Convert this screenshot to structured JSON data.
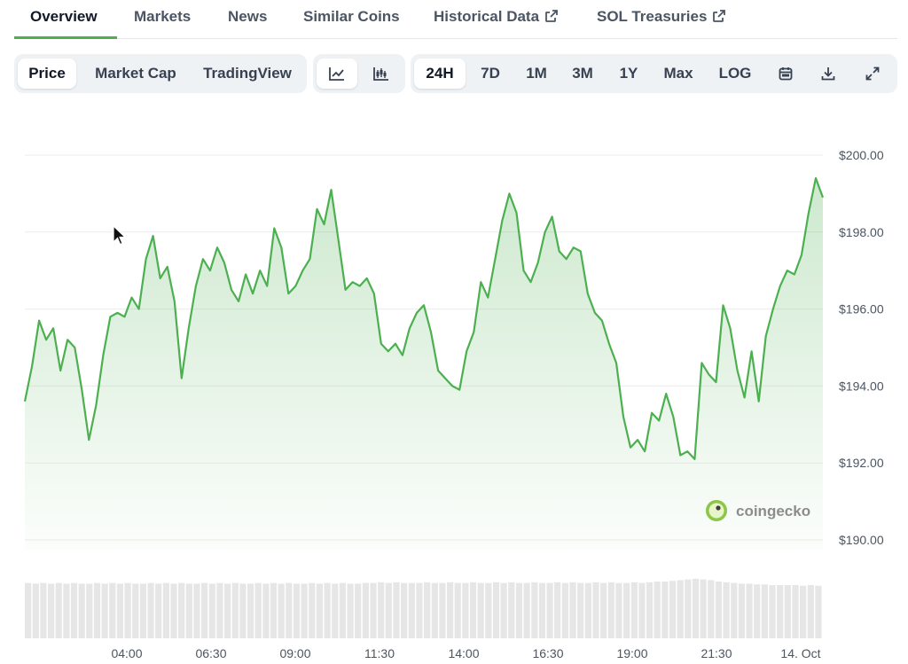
{
  "tabs": [
    {
      "label": "Overview"
    },
    {
      "label": "Markets"
    },
    {
      "label": "News"
    },
    {
      "label": "Similar Coins"
    },
    {
      "label": "Historical Data"
    },
    {
      "label": "SOL Treasuries"
    }
  ],
  "toolbar": {
    "type_tabs": [
      {
        "label": "Price"
      },
      {
        "label": "Market Cap"
      },
      {
        "label": "TradingView"
      }
    ],
    "chart_style": [
      {
        "icon": "line-chart-icon"
      },
      {
        "icon": "candlestick-icon"
      }
    ],
    "ranges": [
      {
        "label": "24H"
      },
      {
        "label": "7D"
      },
      {
        "label": "1M"
      },
      {
        "label": "3M"
      },
      {
        "label": "1Y"
      },
      {
        "label": "Max"
      },
      {
        "label": "LOG"
      }
    ],
    "actions": [
      {
        "icon": "calendar-icon"
      },
      {
        "icon": "download-icon"
      },
      {
        "icon": "expand-icon"
      }
    ]
  },
  "colors": {
    "line": "#4caf50",
    "area_top": "#cfeccf",
    "tab_accent": "#4caf50",
    "volume": "#e6e6e6"
  },
  "watermark": {
    "text": "coingecko"
  },
  "chart_data": {
    "type": "line",
    "y_ticks": [
      "$200.00",
      "$198.00",
      "$196.00",
      "$194.00",
      "$192.00",
      "$190.00"
    ],
    "ylim": [
      190,
      200
    ],
    "x_ticks": [
      "04:00",
      "06:30",
      "09:00",
      "11:30",
      "14:00",
      "16:30",
      "19:00",
      "21:30",
      "14. Oct"
    ],
    "grid": true,
    "legend": "none",
    "series": [
      {
        "values": [
          193.6,
          194.5,
          195.7,
          195.2,
          195.5,
          194.4,
          195.2,
          195.0,
          193.9,
          192.6,
          193.5,
          194.8,
          195.8,
          195.9,
          195.8,
          196.3,
          196.0,
          197.3,
          197.9,
          196.8,
          197.1,
          196.2,
          194.2,
          195.5,
          196.6,
          197.3,
          197.0,
          197.6,
          197.2,
          196.5,
          196.2,
          196.9,
          196.4,
          197.0,
          196.6,
          198.1,
          197.6,
          196.4,
          196.6,
          197.0,
          197.3,
          198.6,
          198.2,
          199.1,
          197.8,
          196.5,
          196.7,
          196.6,
          196.8,
          196.4,
          195.1,
          194.9,
          195.1,
          194.8,
          195.5,
          195.9,
          196.1,
          195.4,
          194.4,
          194.2,
          194.0,
          193.9,
          194.9,
          195.4,
          196.7,
          196.3,
          197.3,
          198.3,
          199.0,
          198.5,
          197.0,
          196.7,
          197.2,
          198.0,
          198.4,
          197.5,
          197.3,
          197.6,
          197.5,
          196.4,
          195.9,
          195.7,
          195.1,
          194.6,
          193.2,
          192.4,
          192.6,
          192.3,
          193.3,
          193.1,
          193.8,
          193.2,
          192.2,
          192.3,
          192.1,
          194.6,
          194.3,
          194.1,
          196.1,
          195.5,
          194.4,
          193.7,
          194.9,
          193.6,
          195.3,
          196.0,
          196.6,
          197.0,
          196.9,
          197.4,
          198.5,
          199.4,
          198.9
        ]
      }
    ],
    "volume": [
      0.78,
      0.77,
      0.78,
      0.77,
      0.78,
      0.77,
      0.78,
      0.77,
      0.77,
      0.78,
      0.77,
      0.78,
      0.77,
      0.78,
      0.77,
      0.77,
      0.78,
      0.77,
      0.78,
      0.77,
      0.78,
      0.77,
      0.77,
      0.78,
      0.77,
      0.78,
      0.77,
      0.78,
      0.77,
      0.77,
      0.78,
      0.77,
      0.78,
      0.77,
      0.78,
      0.77,
      0.77,
      0.78,
      0.77,
      0.78,
      0.77,
      0.78,
      0.77,
      0.77,
      0.78,
      0.78,
      0.79,
      0.78,
      0.79,
      0.78,
      0.78,
      0.78,
      0.79,
      0.78,
      0.78,
      0.79,
      0.78,
      0.78,
      0.79,
      0.78,
      0.78,
      0.79,
      0.78,
      0.79,
      0.78,
      0.78,
      0.79,
      0.78,
      0.78,
      0.79,
      0.78,
      0.79,
      0.78,
      0.78,
      0.79,
      0.78,
      0.79,
      0.78,
      0.78,
      0.79,
      0.78,
      0.79,
      0.8,
      0.8,
      0.81,
      0.82,
      0.83,
      0.84,
      0.83,
      0.82,
      0.8,
      0.79,
      0.78,
      0.77,
      0.77,
      0.76,
      0.76,
      0.75,
      0.75,
      0.75,
      0.75,
      0.74,
      0.75,
      0.74
    ]
  }
}
